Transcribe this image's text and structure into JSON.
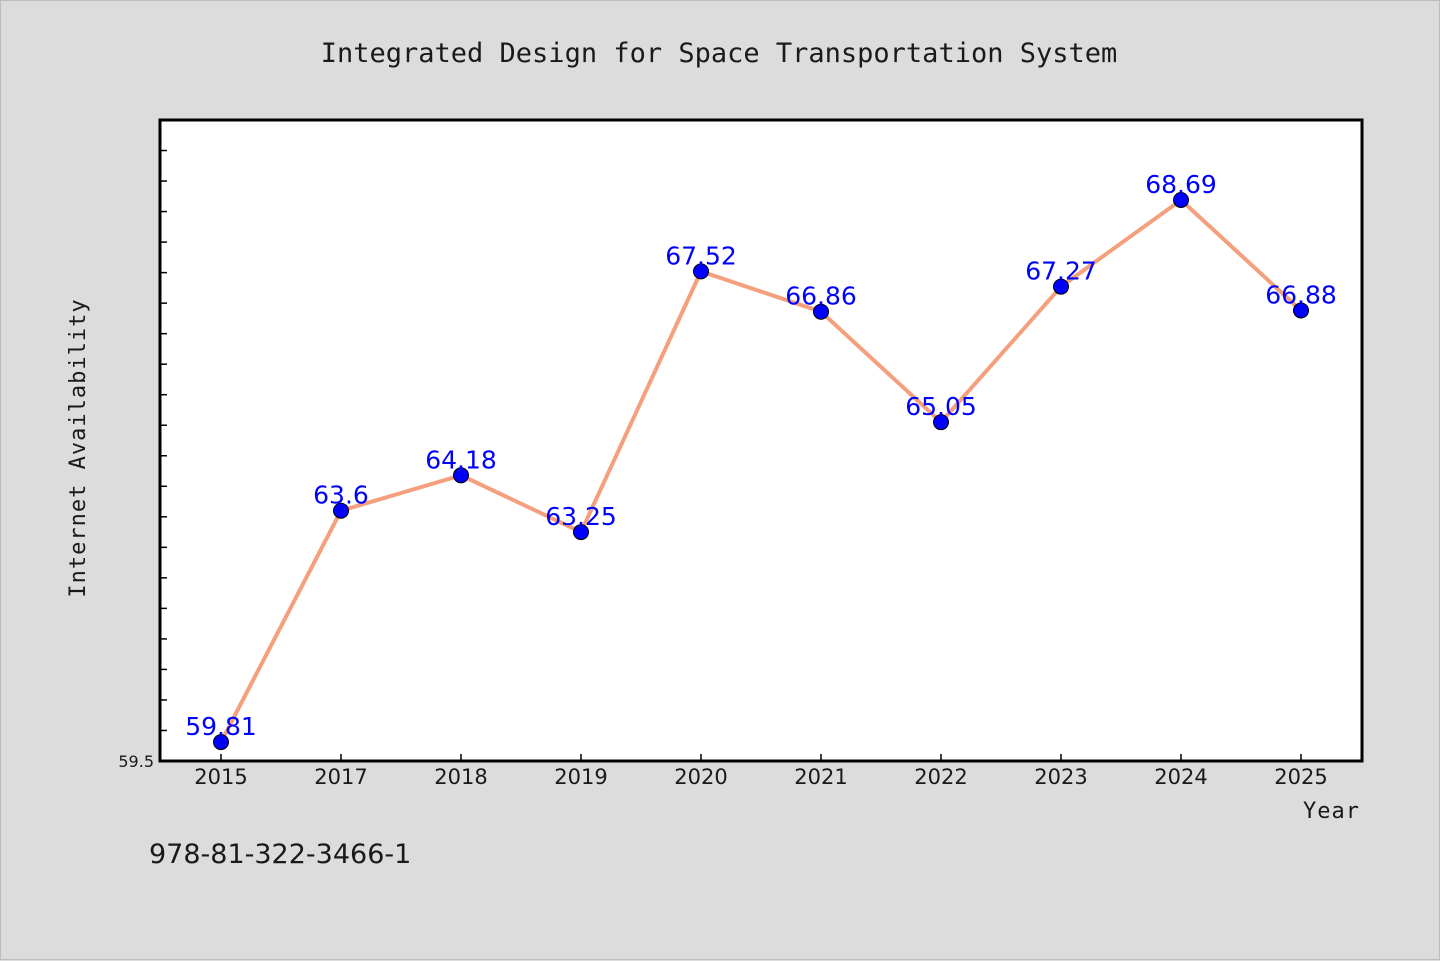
{
  "chart_data": {
    "type": "line",
    "title": "Integrated Design for Space Transportation System",
    "xlabel": "Year",
    "ylabel": "Internet Availability",
    "categories": [
      "2015",
      "2017",
      "2018",
      "2019",
      "2020",
      "2021",
      "2022",
      "2023",
      "2024",
      "2025"
    ],
    "values": [
      59.81,
      63.6,
      64.18,
      63.25,
      67.52,
      66.86,
      65.05,
      67.27,
      68.69,
      66.88
    ],
    "data_labels": [
      "59.81",
      "63.6",
      "64.18",
      "63.25",
      "67.52",
      "66.86",
      "65.05",
      "67.27",
      "68.69",
      "66.88"
    ],
    "ylim": [
      59.5,
      70.0
    ],
    "y_tick_labels": [
      "59.5"
    ],
    "grid": false,
    "legend": "none",
    "colors": {
      "line": "#f4a07e",
      "marker": "#0000ff",
      "label": "#0000ff",
      "plot_bg": "#ffffff",
      "page_bg": "#dcdcdc"
    }
  },
  "footer": {
    "isbn": "978-81-322-3466-1"
  }
}
